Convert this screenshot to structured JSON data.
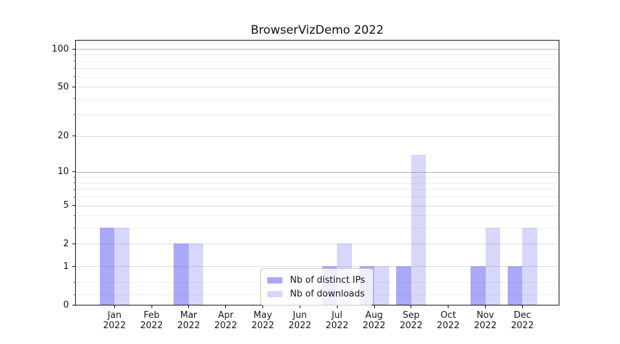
{
  "chart_data": {
    "type": "bar",
    "title": "BrowserVizDemo 2022",
    "xlabel": "",
    "ylabel": "",
    "year": "2022",
    "categories": [
      "Jan",
      "Feb",
      "Mar",
      "Apr",
      "May",
      "Jun",
      "Jul",
      "Aug",
      "Sep",
      "Oct",
      "Nov",
      "Dec"
    ],
    "series": [
      {
        "name": "Nb of distinct IPs",
        "values": [
          3,
          0,
          2,
          0,
          0,
          0,
          1,
          1,
          1,
          0,
          1,
          1
        ],
        "color": "rgba(68,68,238,0.46)",
        "color_on_white": "#a9a9f2"
      },
      {
        "name": "Nb of downloads",
        "values": [
          3,
          0,
          2,
          0,
          0,
          0,
          2,
          1,
          14,
          0,
          3,
          3
        ],
        "color": "rgba(68,68,238,0.21)",
        "color_on_white": "#d8d8f9"
      }
    ],
    "yscale": "log1p",
    "y_major_ticks": [
      0,
      1,
      2,
      5,
      10,
      20,
      50,
      100
    ],
    "y_minor_ticks": [
      0.2,
      0.5,
      3,
      4,
      6,
      7,
      8,
      9,
      30,
      40,
      60,
      70,
      80,
      90
    ],
    "ylim": [
      0,
      116
    ],
    "grid": "horizontal",
    "legend_position": "lower center"
  },
  "colors": {
    "grid_minor": "#eeeeee",
    "grid_major": "#dbdbdb",
    "grid_decade": "#b5b5b5",
    "spine": "#111111",
    "text": "#151515",
    "legend_border": "#c9c9c9",
    "legend_bg": "rgba(255,255,255,0.8)"
  }
}
